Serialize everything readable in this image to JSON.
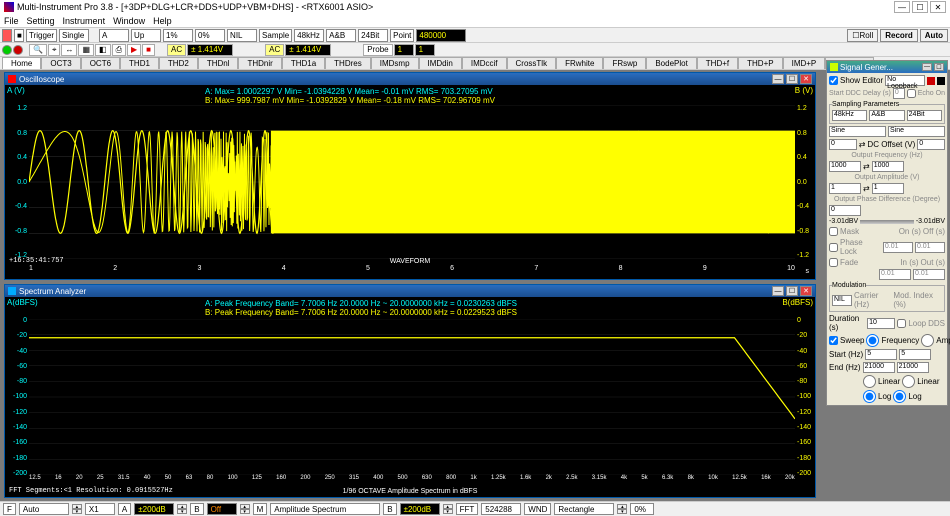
{
  "app": {
    "title": "Multi-Instrument Pro 3.8   - [+3DP+DLG+LCR+DDS+UDP+VBM+DHS]   - <RTX6001 ASIO>"
  },
  "menu": [
    "File",
    "Setting",
    "Instrument",
    "Window",
    "Help"
  ],
  "tb1": {
    "trigger": "Trigger",
    "mode": "Single",
    "chan": "A",
    "edge": "Up",
    "pct": "1%",
    "level": "0%",
    "nil": "NIL",
    "sample": "Sample",
    "rate": "48kHz",
    "ab": "A&B",
    "bits": "24Bit",
    "point": "Point",
    "points_n": "480000",
    "roll": "Roll",
    "record": "Record",
    "auto": "Auto"
  },
  "tb2": {
    "ac1": "AC",
    "v1": "± 1.414V",
    "ac2": "AC",
    "v2": "± 1.414V",
    "probe": "Probe",
    "p1": "1",
    "p2": "1"
  },
  "tabs": [
    "Home",
    "OCT3",
    "OCT6",
    "THD1",
    "THD2",
    "THDnl",
    "THDnir",
    "THD1a",
    "THDres",
    "IMDsmp",
    "IMDdin",
    "IMDccif",
    "CrossTlk",
    "FRwhite",
    "FRswp",
    "BodePlot",
    "THD+f",
    "THD+P",
    "IMD+P",
    "AudioTst"
  ],
  "osc": {
    "title": "Oscilloscope",
    "a_label": "A (V)",
    "b_label": "B (V)",
    "stats_a": "A: Max=  1.0002297  V  Min=  -1.0394228  V  Mean=    -0.01 mV  RMS=   703.27095 mV",
    "stats_b": "B: Max=  999.7987 mV  Min=  -1.0392829  V  Mean=    -0.18 mV  RMS=   702.96709 mV",
    "time": "+16:35:41:757",
    "center": "WAVEFORM",
    "yticks": [
      "1.2",
      "0.8",
      "0.4",
      "0.0",
      "-0.4",
      "-0.8",
      "-1.2"
    ],
    "xticks": [
      "1",
      "2",
      "3",
      "4",
      "5",
      "6",
      "7",
      "8",
      "9",
      "10"
    ],
    "xunit": "s",
    "wave_color": "#ffff00",
    "grid_color": "#333333",
    "chA_color": "#ffff00",
    "chB_color": "#ffff00"
  },
  "spec": {
    "title": "Spectrum Analyzer",
    "a_label": "A(dBFS)",
    "b_label": "B(dBFS)",
    "stats_a": "A: Peak Frequency Band=  7.7006   Hz        20.0000   Hz ~ 20.0000000 kHz =  0.0230263 dBFS",
    "stats_b": "B: Peak Frequency Band=  7.7006   Hz        20.0000   Hz ~ 20.0000000 kHz =  0.0229523 dBFS",
    "footer": "FFT Segments:<1    Resolution:  0.0915527Hz",
    "center": "1/96 OCTAVE Amplitude Spectrum in dBFS",
    "yticks": [
      "0",
      "-20",
      "-40",
      "-60",
      "-80",
      "-100",
      "-120",
      "-140",
      "-160",
      "-180",
      "-200"
    ],
    "xticks": [
      "12.5",
      "16",
      "20",
      "25",
      "31.5",
      "40",
      "50",
      "63",
      "80",
      "100",
      "125",
      "160",
      "200",
      "250",
      "315",
      "400",
      "500",
      "630",
      "800",
      "1k",
      "1.25k",
      "1.6k",
      "2k",
      "2.5k",
      "3.15k",
      "4k",
      "5k",
      "6.3k",
      "8k",
      "10k",
      "12.5k",
      "16k",
      "20k"
    ],
    "line_color": "#ffff00"
  },
  "sg": {
    "title": "Signal Gener...",
    "show_editor": "Show Editor",
    "loopback": "No Loopback",
    "echo": "Echo On",
    "sampling": "Sampling Parameters",
    "rate": "48kHz",
    "ab": "A&B",
    "bits": "24Bit",
    "sine1": "Sine",
    "sine2": "Sine",
    "dcoff": "DC Offset (V)",
    "dcv": "0",
    "outfreq": "Output Frequency (Hz)",
    "f1": "1000",
    "f2": "1000",
    "outamp": "Output Amplitude (V)",
    "a1": "1",
    "a2": "1",
    "outphase": "Output Phase Difference (Degree)",
    "ph": "0",
    "db_lo": "-3.01dBV",
    "db_hi": "-3.01dBV",
    "mask": "Mask",
    "phaselock": "Phase Lock",
    "on": "On (s)",
    "off": "Off (s)",
    "onv": "0.01",
    "offv": "0.01",
    "fade": "Fade",
    "in": "In (s)",
    "out": "Out (s)",
    "inv": "0.01",
    "outv": "0.01",
    "modulation": "Modulation",
    "modsel": "NIL",
    "carrier": "Carrier (Hz)",
    "modidx": "Mod. Index (%)",
    "duration": "Duration (s)",
    "durv": "10",
    "loop": "Loop",
    "sweep": "Sweep",
    "frequency": "Frequency",
    "amplitude": "Amplitude",
    "starthz": "Start (Hz)",
    "startv1": "5",
    "startv2": "5",
    "endhz": "End (Hz)",
    "endv1": "21000",
    "endv2": "21000",
    "linear": "Linear",
    "log": "Log"
  },
  "status": {
    "f": "F",
    "auto": "Auto",
    "x1": "X1",
    "a": "A",
    "a_rng": "±200dB",
    "b": "B",
    "off": "Off",
    "m": "M",
    "mtype": "Amplitude Spectrum",
    "b2": "B",
    "b_rng": "±200dB",
    "fft": "FFT",
    "fftn": "524288",
    "wnd": "WND",
    "wndtype": "Rectangle",
    "pct": "0%"
  }
}
